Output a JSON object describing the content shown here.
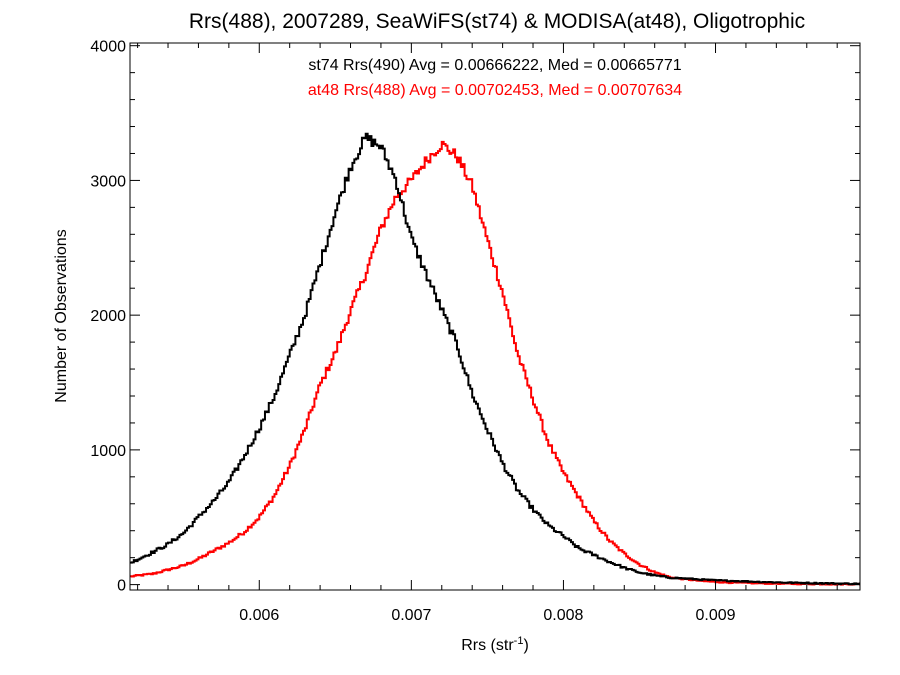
{
  "chart_data": {
    "type": "line",
    "style": "step-histogram",
    "title": "Rrs(488), 2007289, SeaWiFS(st74) & MODISA(at48), Oligotrophic",
    "xlabel": "Rrs (str",
    "xlabel_sup": "-1",
    "xlabel_end": ")",
    "ylabel": "Number of Observations",
    "xlim": [
      0.00515,
      0.00995
    ],
    "ylim": [
      -40,
      4020
    ],
    "x_ticks": [
      0.006,
      0.007,
      0.008,
      0.009
    ],
    "x_tick_labels": [
      "0.006",
      "0.007",
      "0.008",
      "0.009"
    ],
    "y_ticks": [
      0,
      1000,
      2000,
      3000,
      4000
    ],
    "y_tick_labels": [
      "0",
      "1000",
      "2000",
      "3000",
      "4000"
    ],
    "grid": false,
    "legend_position": "top-center",
    "series": [
      {
        "name": "st74",
        "legend": "st74 Rrs(490) Avg = 0.00666222, Med = 0.00665771",
        "color": "#000000",
        "x": [
          0.00515,
          0.0053,
          0.0054,
          0.0055,
          0.0056,
          0.0057,
          0.0058,
          0.0059,
          0.006,
          0.0061,
          0.0062,
          0.0063,
          0.0064,
          0.0065,
          0.0066,
          0.0067,
          0.0068,
          0.0069,
          0.007,
          0.0071,
          0.0072,
          0.0073,
          0.0074,
          0.0075,
          0.0076,
          0.0077,
          0.0078,
          0.0079,
          0.008,
          0.0081,
          0.0082,
          0.0083,
          0.0084,
          0.0085,
          0.0086,
          0.0087,
          0.0088,
          0.0089,
          0.009,
          0.0091,
          0.0092,
          0.0093,
          0.0094,
          0.0095,
          0.0096,
          0.0097,
          0.0098,
          0.00995
        ],
        "values": [
          160,
          240,
          300,
          380,
          500,
          620,
          760,
          950,
          1160,
          1400,
          1700,
          2000,
          2380,
          2760,
          3100,
          3320,
          3250,
          3000,
          2570,
          2300,
          2040,
          1780,
          1420,
          1150,
          900,
          700,
          560,
          440,
          360,
          270,
          220,
          170,
          125,
          90,
          68,
          52,
          45,
          38,
          32,
          28,
          24,
          20,
          17,
          14,
          12,
          10,
          8,
          6
        ]
      },
      {
        "name": "at48",
        "legend": "at48 Rrs(488) Avg = 0.00702453, Med = 0.00707634",
        "color": "#ff0000",
        "x": [
          0.00515,
          0.0053,
          0.0054,
          0.0055,
          0.0056,
          0.0057,
          0.0058,
          0.0059,
          0.006,
          0.0061,
          0.0062,
          0.0063,
          0.0064,
          0.0065,
          0.0066,
          0.0067,
          0.0068,
          0.0069,
          0.007,
          0.0071,
          0.0072,
          0.0073,
          0.0074,
          0.0075,
          0.0076,
          0.0077,
          0.0078,
          0.0079,
          0.008,
          0.0081,
          0.0082,
          0.0083,
          0.0084,
          0.0085,
          0.0086,
          0.0087,
          0.0088,
          0.0089,
          0.009,
          0.0091,
          0.0092,
          0.0093,
          0.0094,
          0.0095,
          0.0096,
          0.0097,
          0.0098,
          0.00995
        ],
        "values": [
          60,
          80,
          110,
          140,
          190,
          250,
          310,
          390,
          500,
          660,
          880,
          1150,
          1480,
          1720,
          2030,
          2310,
          2640,
          2880,
          3000,
          3150,
          3270,
          3180,
          2960,
          2560,
          2170,
          1710,
          1380,
          1060,
          830,
          650,
          470,
          330,
          230,
          150,
          92,
          55,
          40,
          28,
          20,
          15,
          12,
          10,
          8,
          6,
          5,
          4,
          3,
          3
        ]
      }
    ]
  }
}
